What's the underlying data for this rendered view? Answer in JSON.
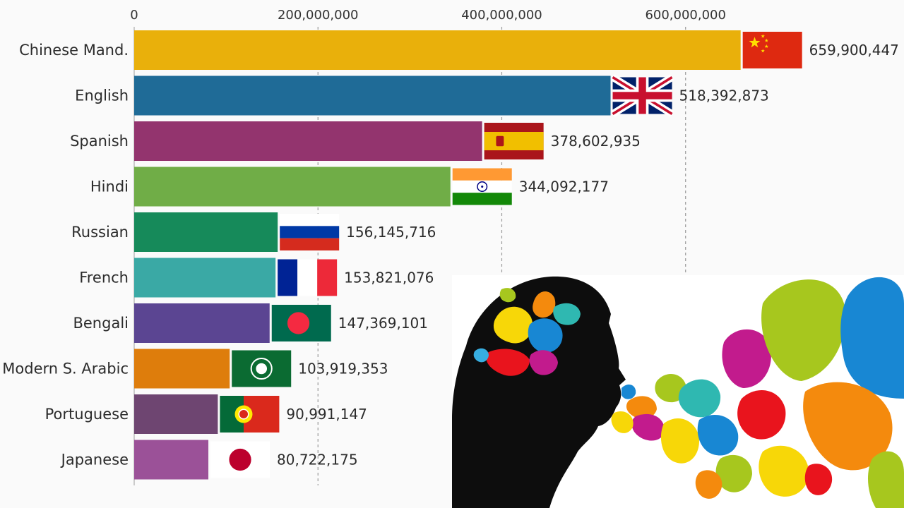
{
  "chart_data": {
    "type": "bar",
    "orientation": "horizontal",
    "categories": [
      "Chinese Mand.",
      "English",
      "Spanish",
      "Hindi",
      "Russian",
      "French",
      "Bengali",
      "Modern S. Arabic",
      "Portuguese",
      "Japanese"
    ],
    "values": [
      659900447,
      518392873,
      378602935,
      344092177,
      156145716,
      153821076,
      147369101,
      103919353,
      90991147,
      80722175
    ],
    "value_labels": [
      "659,900,447",
      "518,392,873",
      "378,602,935",
      "344,092,177",
      "156,145,716",
      "153,821,076",
      "147,369,101",
      "103,919,353",
      "90,991,147",
      "80,722,175"
    ],
    "colors": [
      "#e9b00b",
      "#1f6b97",
      "#93346e",
      "#70ad47",
      "#168a5a",
      "#3aa9a5",
      "#5b4592",
      "#de7d0c",
      "#6e4571",
      "#9b5198"
    ],
    "flags": [
      "china-flag",
      "uk-flag",
      "spain-flag",
      "india-flag",
      "russia-flag",
      "france-flag",
      "bangladesh-flag",
      "arab-league-flag",
      "portugal-flag",
      "japan-flag"
    ],
    "x_ticks": [
      0,
      200000000,
      400000000,
      600000000
    ],
    "x_tick_labels": [
      "0",
      "200,000,000",
      "400,000,000",
      "600,000,000"
    ],
    "xlim": [
      0,
      830000000
    ],
    "grid": "vertical dashed",
    "legend": "none",
    "title": "",
    "xlabel": "",
    "ylabel": ""
  },
  "overlay": {
    "icon": "speaking-head-with-colorful-droplets-icon"
  }
}
